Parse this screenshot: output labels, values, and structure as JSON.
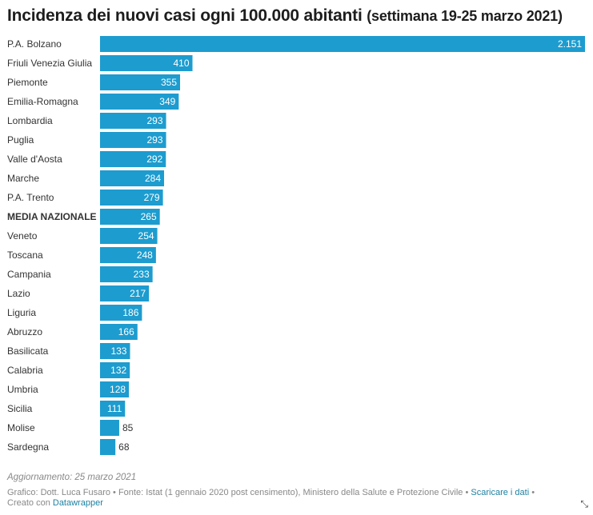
{
  "title": {
    "main": "Incidenza dei nuovi casi ogni 100.000 abitanti",
    "sub": "(settimana 19-25 marzo 2021)"
  },
  "chart_data": {
    "type": "bar",
    "orientation": "horizontal",
    "title": "Incidenza dei nuovi casi ogni 100.000 abitanti (settimana 19-25 marzo 2021)",
    "xlim": [
      0,
      2151
    ],
    "grid": false,
    "legend": "none",
    "bar_color": "#1d9ccf",
    "highlight_category": "MEDIA NAZIONALE",
    "categories": [
      "P.A. Bolzano",
      "Friuli Venezia Giulia",
      "Piemonte",
      "Emilia-Romagna",
      "Lombardia",
      "Puglia",
      "Valle d'Aosta",
      "Marche",
      "P.A. Trento",
      "MEDIA NAZIONALE",
      "Veneto",
      "Toscana",
      "Campania",
      "Lazio",
      "Liguria",
      "Abruzzo",
      "Basilicata",
      "Calabria",
      "Umbria",
      "Sicilia",
      "Molise",
      "Sardegna"
    ],
    "values": [
      2151,
      410,
      355,
      349,
      293,
      293,
      292,
      284,
      279,
      265,
      254,
      248,
      233,
      217,
      186,
      166,
      133,
      132,
      128,
      111,
      85,
      68
    ],
    "labels": [
      "2.151",
      "410",
      "355",
      "349",
      "293",
      "293",
      "292",
      "284",
      "279",
      "265",
      "254",
      "248",
      "233",
      "217",
      "186",
      "166",
      "133",
      "132",
      "128",
      "111",
      "85",
      "68"
    ]
  },
  "footer": {
    "updated": "Aggiornamento: 25 marzo 2021",
    "source": "Grafico: Dott. Luca Fusaro • Fonte: Istat (1 gennaio 2020 post censimento), Ministero della Salute e Protezione Civile •",
    "download_link": "Scaricare i dati",
    "source_end": "•",
    "made_with": "Creato con",
    "made_with_link": "Datawrapper"
  },
  "icons": {
    "resize": "resize-arrows-icon"
  }
}
